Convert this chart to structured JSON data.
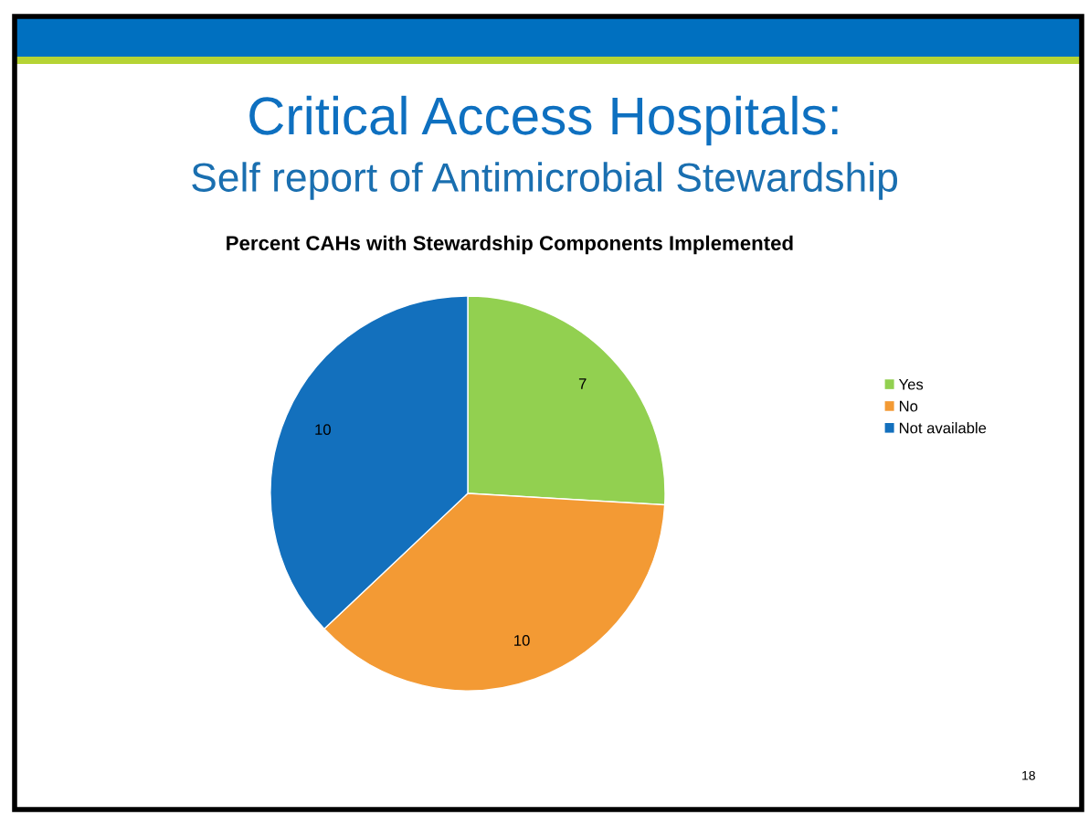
{
  "chart_data": {
    "type": "pie",
    "title": "Critical Access Hospitals:",
    "subtitle": "Self report of Antimicrobial Stewardship",
    "annotations": [
      "Percent CAHs with Stewardship Components Implemented",
      "18"
    ],
    "categories": [
      "Yes",
      "No",
      "Not available"
    ],
    "values": [
      7,
      10,
      10
    ],
    "colors": [
      "#92d050",
      "#f39a34",
      "#1370bd"
    ],
    "data_labels": true,
    "legend": "right"
  }
}
